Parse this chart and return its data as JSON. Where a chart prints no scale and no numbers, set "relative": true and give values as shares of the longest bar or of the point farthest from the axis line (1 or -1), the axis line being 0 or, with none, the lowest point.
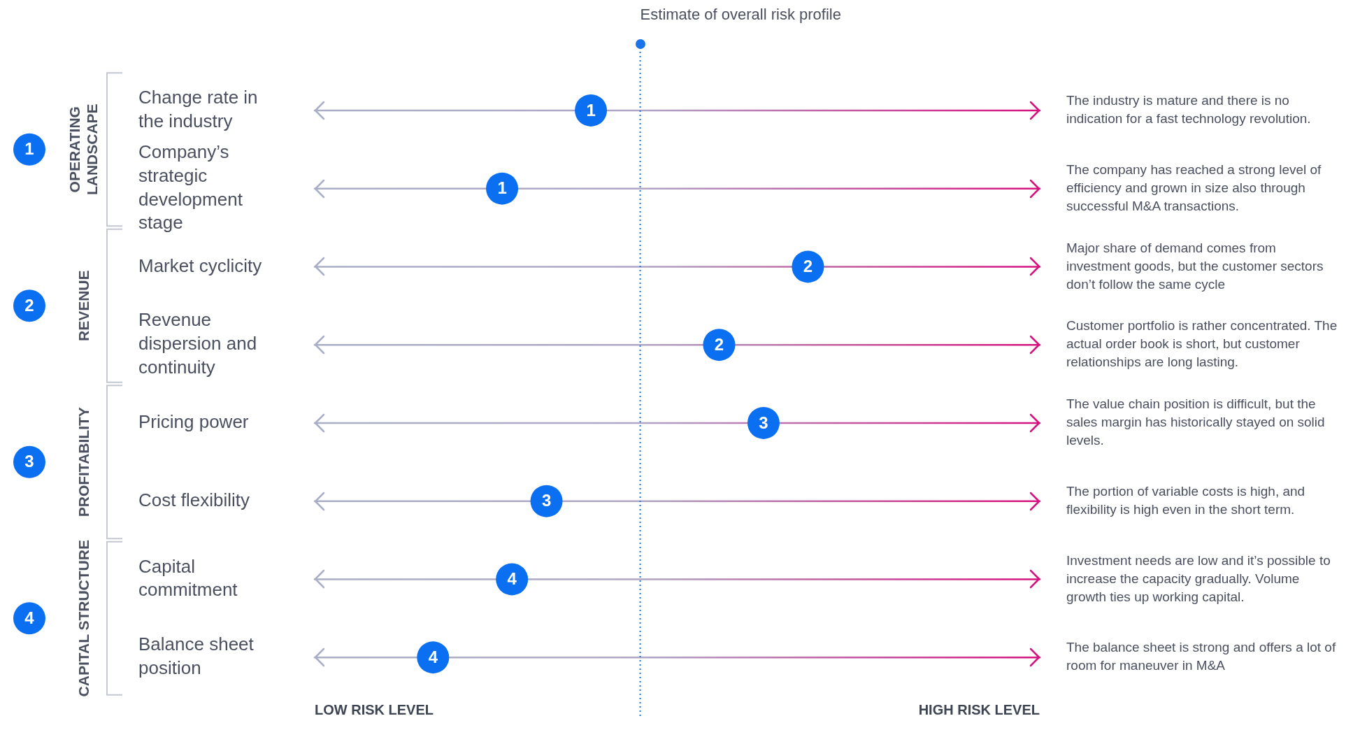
{
  "chart_data": {
    "type": "scatter",
    "orientation": "horizontal",
    "relative": true,
    "categories": [
      "Change rate in the industry",
      "Company’s strategic development stage",
      "Market cyclicity",
      "Revenue dispersion and continuity",
      "Pricing power",
      "Cost flexibility",
      "Capital commitment",
      "Balance sheet position"
    ],
    "series": [
      {
        "name": "OPERATING LANDSCAPE",
        "color": "#0b6ff2",
        "values": [
          0.56,
          0.38,
          null,
          null,
          null,
          null,
          null,
          null
        ]
      },
      {
        "name": "REVENUE",
        "color": "#0b6ff2",
        "values": [
          null,
          null,
          1,
          0.82,
          null,
          null,
          null,
          null
        ]
      },
      {
        "name": "PROFITABILITY",
        "color": "#0b6ff2",
        "values": [
          null,
          null,
          null,
          null,
          0.91,
          0.47,
          null,
          null
        ]
      },
      {
        "name": "CAPITAL STRUCTURE",
        "color": "#0b6ff2",
        "values": [
          null,
          null,
          null,
          null,
          null,
          null,
          0.4,
          0.24
        ]
      }
    ],
    "ref_lines": [
      {
        "axis": "x",
        "value": 0.66,
        "label": "Estimate of overall risk profile",
        "color": "#1a73e8",
        "line_style": "dotted"
      }
    ],
    "annotations": [
      "The industry is mature and there is no indication for a fast technology revolution.",
      "The company has reached a strong level of efficiency and grown in size also through successful M&A transactions.",
      "Major share of demand comes from investment goods, but the customer sectors don’t follow the same cycle",
      "Customer portfolio is rather concentrated. The actual order book is short, but customer relationships are long lasting.",
      "The value chain position is difficult, but the sales margin has historically stayed on solid levels.",
      "The portion of variable costs is high, and flexibility is high even in the short term.",
      "Investment needs are low and it’s possible to increase the capacity gradually. Volume growth ties up working capital.",
      "The balance sheet is strong and offers a lot of room for maneuver in M&A",
      "LOW RISK LEVEL",
      "HIGH RISK LEVEL",
      {
        "text": "1",
        "x": 0.56,
        "y": "Change rate in the industry"
      },
      {
        "text": "1",
        "x": 0.38,
        "y": "Company’s strategic development stage"
      },
      {
        "text": "2",
        "x": 1,
        "y": "Market cyclicity"
      },
      {
        "text": "2",
        "x": 0.82,
        "y": "Revenue dispersion and continuity"
      },
      {
        "text": "3",
        "x": 0.91,
        "y": "Pricing power"
      },
      {
        "text": "3",
        "x": 0.47,
        "y": "Cost flexibility"
      },
      {
        "text": "4",
        "x": 0.4,
        "y": "Capital commitment"
      },
      {
        "text": "4",
        "x": 0.24,
        "y": "Balance sheet position"
      }
    ],
    "grid": "y",
    "legend": "left",
    "marker": "circle"
  }
}
